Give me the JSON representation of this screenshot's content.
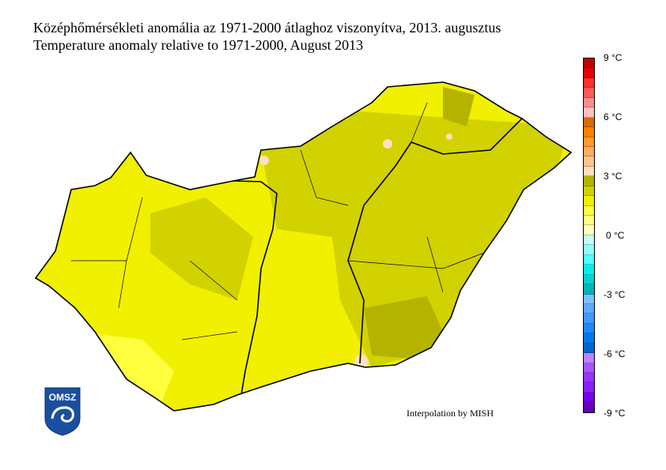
{
  "title_hu": "Középhőmérsékleti anomália az 1971-2000 átlaghoz viszonyítva, 2013. augusztus",
  "title_en": "Temperature anomaly relative to 1971-2000, August 2013",
  "credit": "Interpolation by MISH",
  "logo_text": "OMSZ",
  "legend": {
    "ticks": [
      "9 °C",
      "6 °C",
      "3 °C",
      "0 °C",
      "-3 °C",
      "-6 °C",
      "-9 °C"
    ],
    "range": [
      -9,
      9
    ],
    "step": 0.5,
    "colors": [
      "#c40000",
      "#e60000",
      "#ff3030",
      "#ff5a5a",
      "#ff8c8c",
      "#ffc0c0",
      "#dd6a00",
      "#ff8000",
      "#ff9a30",
      "#ffae5a",
      "#ffc58c",
      "#ffe0c0",
      "#b4b400",
      "#d2d200",
      "#f0f000",
      "#ffff40",
      "#ffff80",
      "#ffffc0",
      "#c0ffff",
      "#8cffff",
      "#50ffff",
      "#00f0f0",
      "#00d2d2",
      "#00b4b4",
      "#80c0ff",
      "#60aaff",
      "#4099ff",
      "#2088ff",
      "#0077ee",
      "#0066cc",
      "#c080ff",
      "#aa55ff",
      "#9933ff",
      "#8820ff",
      "#7700ee",
      "#6600bb"
    ]
  },
  "map_colors": {
    "dominant": "#f0f000",
    "warmer": "#d2d200",
    "warmest": "#b4b400",
    "cooler": "#ffff40",
    "hotspot": "#ffe0c0"
  }
}
